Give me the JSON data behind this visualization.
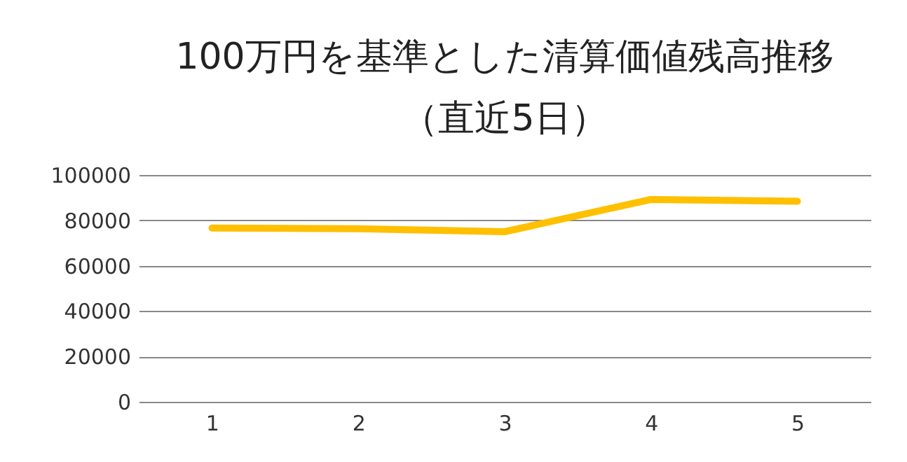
{
  "chart_data": {
    "type": "line",
    "title": [
      "100万円を基準とした清算価値残高推移",
      "（直近5日）"
    ],
    "categories": [
      "1",
      "2",
      "3",
      "4",
      "5"
    ],
    "series": [
      {
        "color": "#ffc000",
        "values": [
          76600,
          76300,
          75000,
          89200,
          88400
        ]
      }
    ],
    "ylim": [
      0,
      100000
    ],
    "yticks": [
      0,
      20000,
      40000,
      60000,
      80000,
      100000
    ],
    "grid": "y",
    "marker": "none",
    "line_style": "solid"
  }
}
